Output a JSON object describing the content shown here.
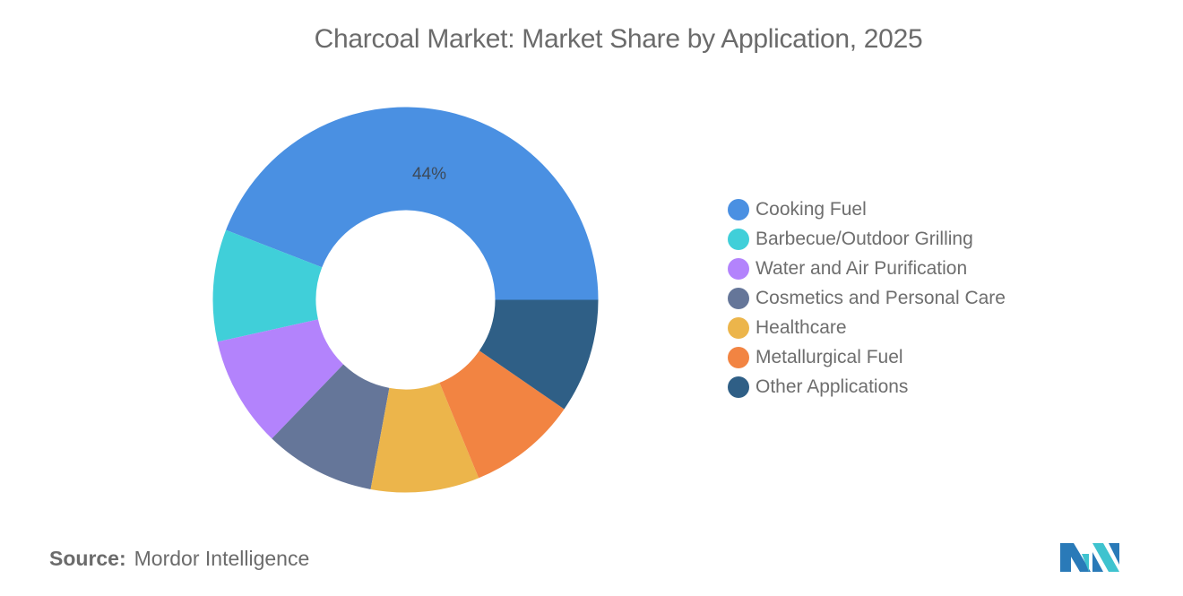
{
  "header": {
    "title": "Charcoal Market: Market Share by Application, 2025"
  },
  "footer": {
    "source_key": "Source:",
    "source_value": "Mordor Intelligence",
    "logo": "mordor-intelligence-logo"
  },
  "legend": {
    "items": [
      {
        "label": "Cooking Fuel",
        "color": "#4A90E2"
      },
      {
        "label": "Barbecue/Outdoor Grilling",
        "color": "#40CFD9"
      },
      {
        "label": "Water and Air Purification",
        "color": "#B383FC"
      },
      {
        "label": "Cosmetics and Personal Care",
        "color": "#657699"
      },
      {
        "label": "Healthcare",
        "color": "#ECB54B"
      },
      {
        "label": "Metallurgical Fuel",
        "color": "#F28442"
      },
      {
        "label": "Other Applications",
        "color": "#2F5F86"
      }
    ]
  },
  "chart_data": {
    "type": "pie",
    "subtype": "donut",
    "title": "Charcoal Market: Market Share by Application, 2025",
    "categories": [
      "Cooking Fuel",
      "Barbecue/Outdoor Grilling",
      "Water and Air Purification",
      "Cosmetics and Personal Care",
      "Healthcare",
      "Metallurgical Fuel",
      "Other Applications"
    ],
    "values": [
      44.1,
      9.4,
      9.3,
      9.3,
      9.1,
      9.2,
      9.6
    ],
    "unit": "%",
    "colors": [
      "#4A90E2",
      "#40CFD9",
      "#B383FC",
      "#657699",
      "#ECB54B",
      "#F28442",
      "#2F5F86"
    ],
    "data_labels": [
      {
        "category": "Cooking Fuel",
        "text": "44%"
      }
    ],
    "legend_position": "right",
    "source": "Mordor Intelligence"
  }
}
